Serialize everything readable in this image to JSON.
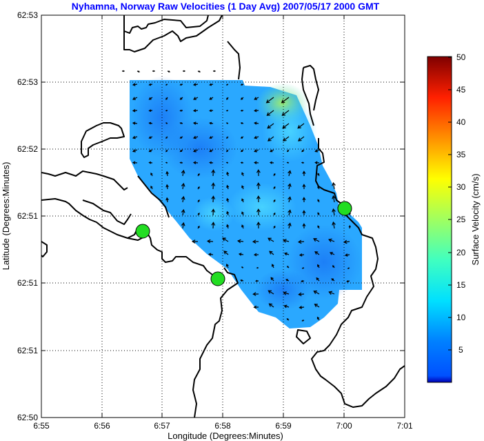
{
  "chart_data": {
    "type": "map",
    "title": "Nyhamna, Norway Raw Velocities (1 Day Avg) 2007/05/17 2000 GMT",
    "xlabel": "Longitude (Degrees:Minutes)",
    "ylabel": "Latitude (Degrees:Minutes)",
    "x_ticks": [
      "6:55",
      "6:56",
      "6:57",
      "6:58",
      "6:59",
      "7:00",
      "7:01"
    ],
    "y_ticks": [
      "62:53",
      "62:53",
      "62:52",
      "62:51",
      "62:51",
      "62:51",
      "62:50"
    ],
    "grid": true,
    "colorbar": {
      "label": "Surface Velocity (cm/s)",
      "range": [
        0,
        50
      ],
      "ticks": [
        "50",
        "45",
        "40",
        "35",
        "30",
        "25",
        "20",
        "15",
        "10",
        "5"
      ],
      "colormap": "jet"
    },
    "stations": [
      {
        "lon_min": 56.7,
        "lat_index": 2.75,
        "color": "#22dd22"
      },
      {
        "lon_min": 57.92,
        "lat_index": 2.05,
        "color": "#22dd22"
      },
      {
        "lon_min": 60.0,
        "lat_index": 3.12,
        "color": "#22dd22"
      }
    ],
    "speed_range_shown": [
      3,
      18
    ]
  }
}
